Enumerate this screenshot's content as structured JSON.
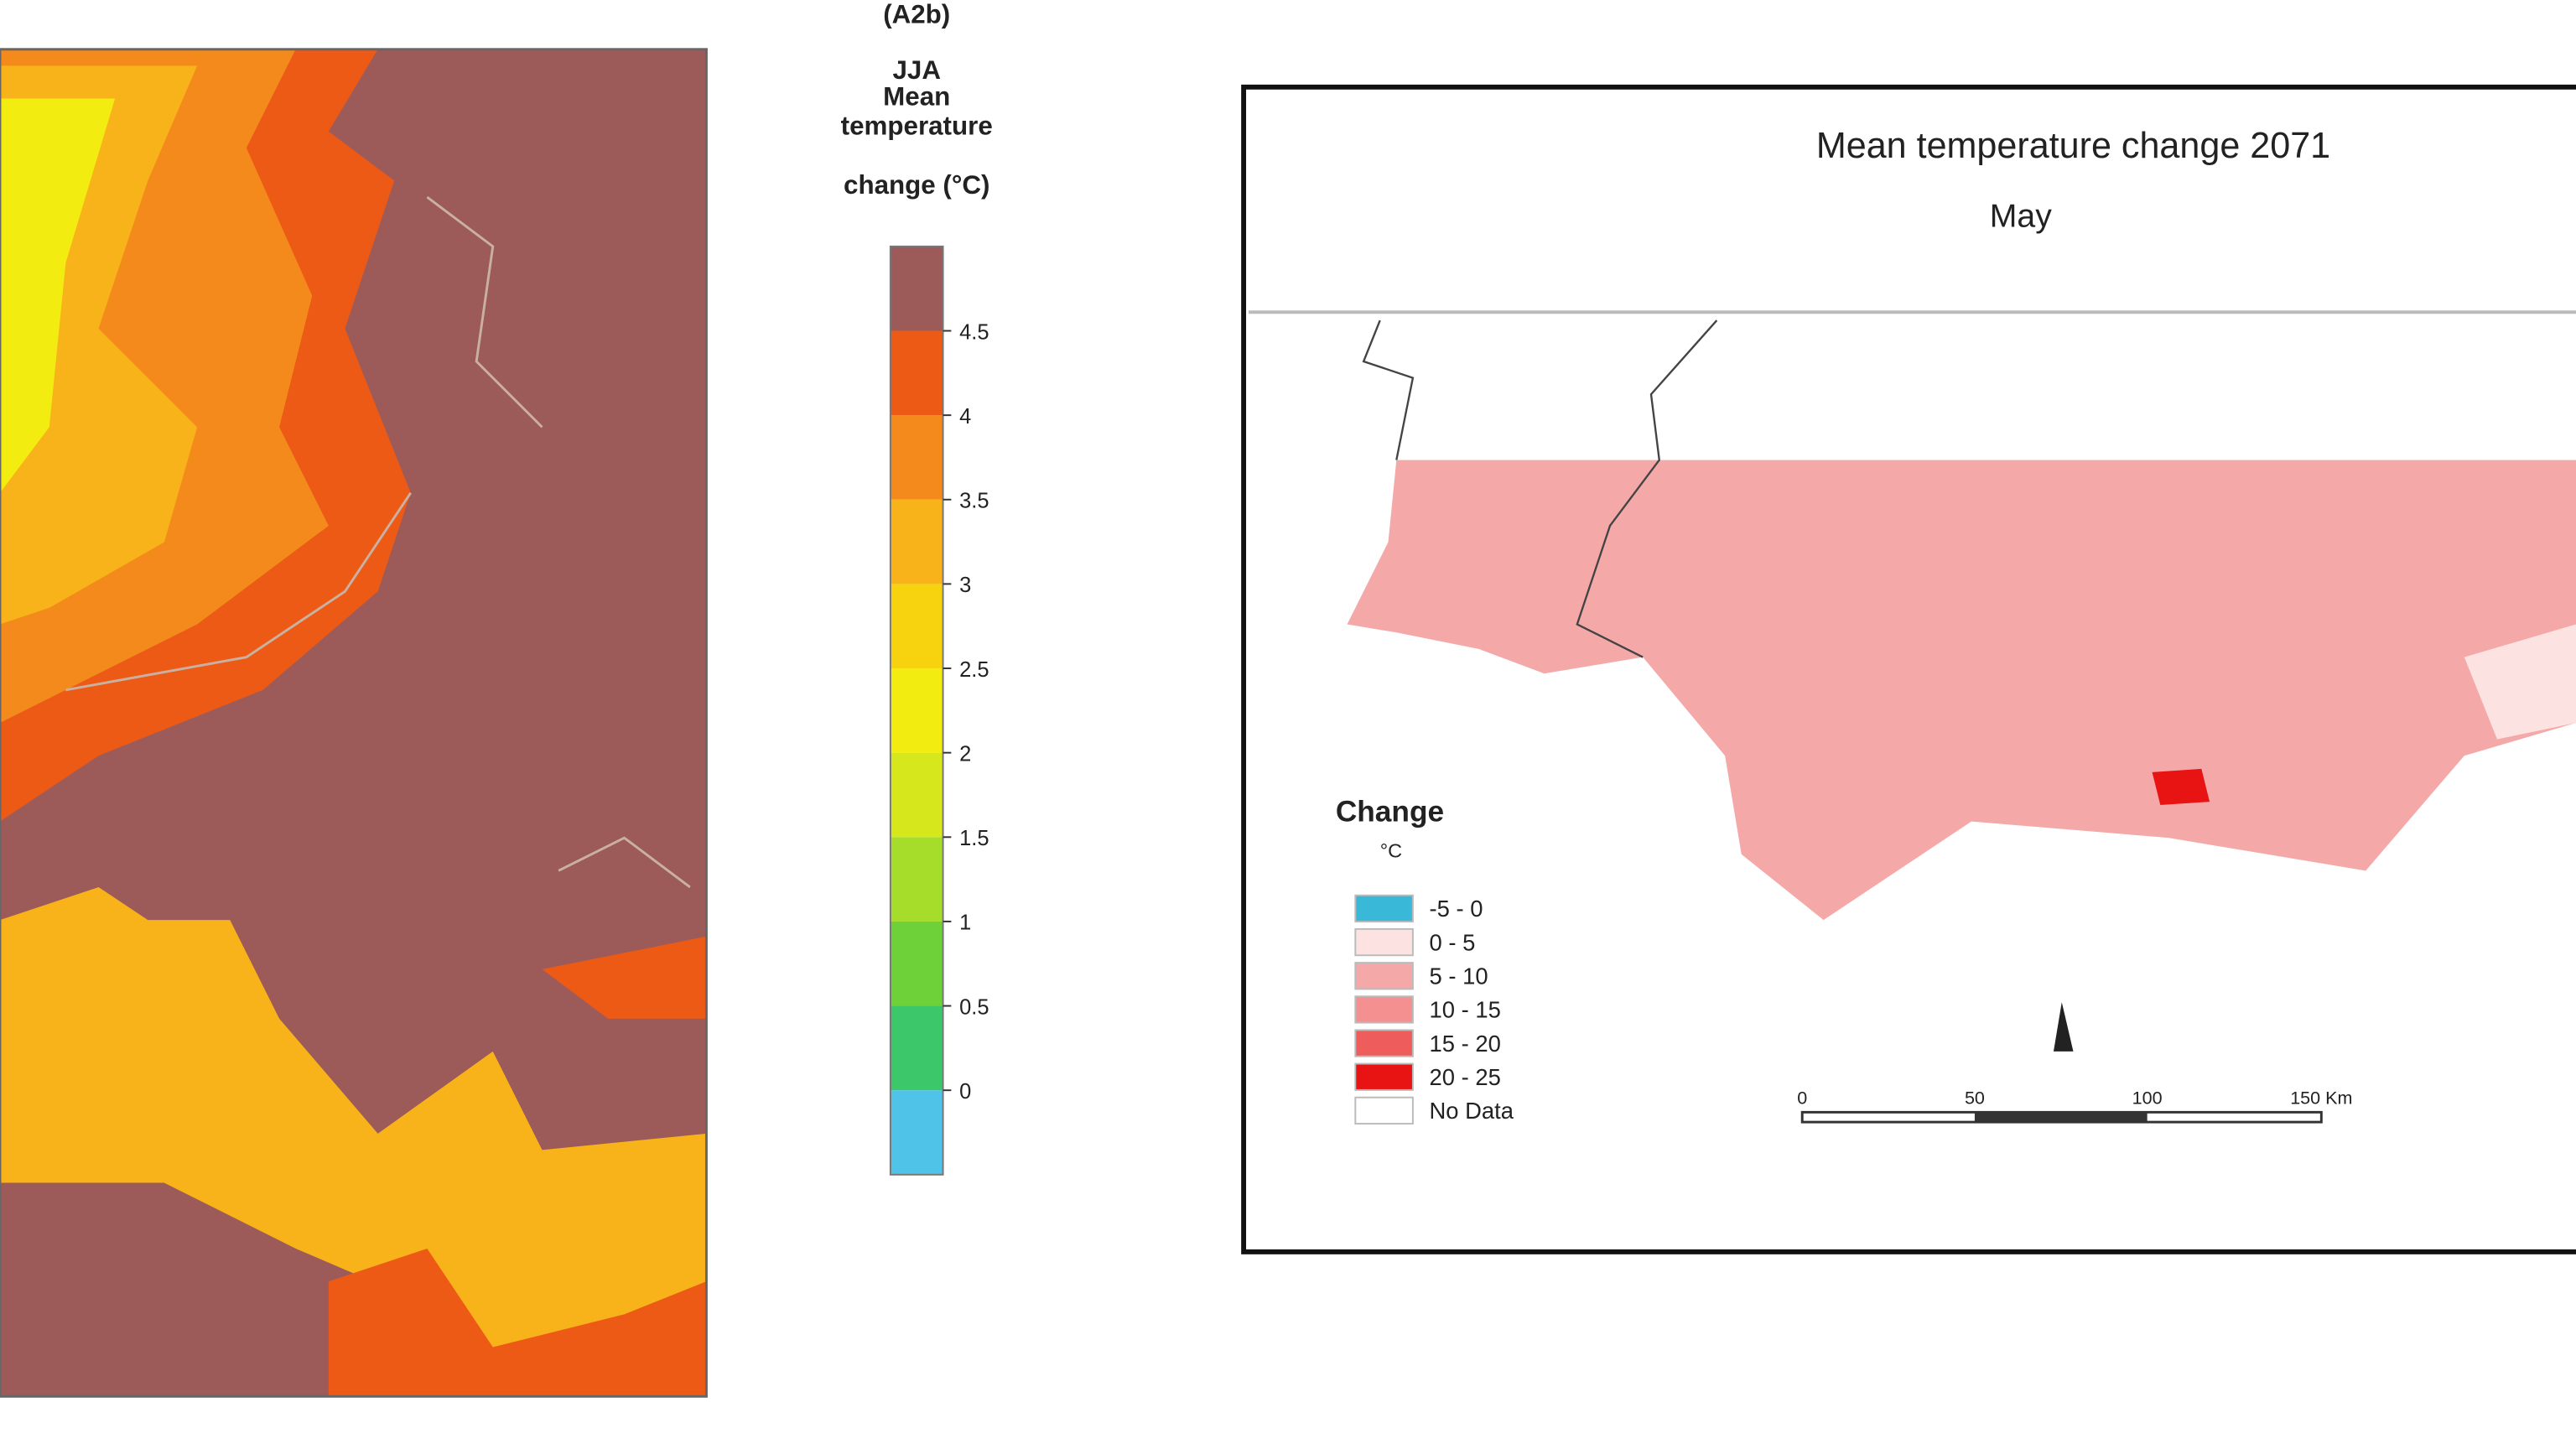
{
  "left_panel": {
    "legend_title": [
      "(A2b)",
      "JJA",
      "Mean",
      "temperature",
      "change (°C)"
    ],
    "colorbar": {
      "range": [
        -0.5,
        5
      ],
      "ticks": [
        4.5,
        4,
        3.5,
        3,
        2.5,
        2,
        1.5,
        1,
        0.5,
        0
      ],
      "colors": [
        "#4fc3e8",
        "#3cc86a",
        "#6fd13a",
        "#a6dc2a",
        "#d6e81c",
        "#f3ec10",
        "#f7d20e",
        "#f8b21a",
        "#f48a1c",
        "#ec5a16",
        "#9c5a58"
      ]
    }
  },
  "right_panel": {
    "title": "Mean temperature change 2071",
    "subtitle": "May",
    "legend": {
      "title": "Change",
      "unit": "°C",
      "items": [
        {
          "label": "-5 - 0",
          "color": "#3ab8d8"
        },
        {
          "label": "0 - 5",
          "color": "#fde2e2"
        },
        {
          "label": "5 - 10",
          "color": "#f5a8a8"
        },
        {
          "label": "10 - 15",
          "color": "#f49090"
        },
        {
          "label": "15 - 20",
          "color": "#ee5c5c"
        },
        {
          "label": "20 - 25",
          "color": "#e81414"
        },
        {
          "label": "No Data",
          "color": "#ffffff"
        }
      ]
    },
    "scale_bar": [
      "0",
      "50",
      "100",
      "150 Km"
    ]
  }
}
